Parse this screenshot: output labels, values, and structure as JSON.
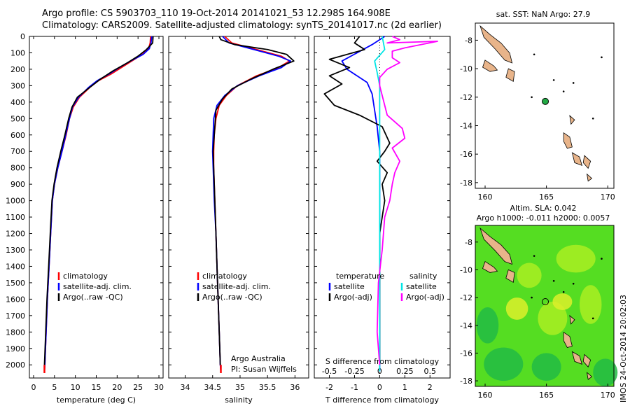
{
  "header": {
    "title_line1": "Argo profile: CS 5903703_110 19-Oct-2014 20141021_53 12.298S 164.908E",
    "title_line2": "Climatology: CARS2009. Satellite-adjusted climatology: synTS_20141017.nc (2d earlier)"
  },
  "colors": {
    "climatology": "#ff0000",
    "satellite": "#0000ff",
    "argo": "#000000",
    "temp_sat_diff": "#0000ff",
    "sal_sat_diff": "#00e5e5",
    "sal_argo_diff": "#ff00ff",
    "land": "#e8b48a"
  },
  "depth_axis": {
    "ticks": [
      0,
      100,
      200,
      300,
      400,
      500,
      600,
      700,
      800,
      900,
      1000,
      1100,
      1200,
      1300,
      1400,
      1500,
      1600,
      1700,
      1800,
      1900,
      2000
    ],
    "range": [
      0,
      2080
    ],
    "reversed": true
  },
  "chart_data": [
    {
      "id": "temperature",
      "type": "line",
      "xlabel": "temperature (deg C)",
      "xlim": [
        -1,
        31
      ],
      "xticks": [
        "0",
        "5",
        "10",
        "15",
        "20",
        "25",
        "30"
      ],
      "xtick_values": [
        0,
        5,
        10,
        15,
        20,
        25,
        30
      ],
      "legend": [
        "climatology",
        "satellite-adj. clim.",
        "Argo(..raw -QC)"
      ],
      "series": [
        {
          "name": "climatology",
          "color": "#ff0000",
          "points": [
            [
              28.0,
              0
            ],
            [
              27.9,
              40
            ],
            [
              27.5,
              75
            ],
            [
              26.0,
              110
            ],
            [
              23.5,
              150
            ],
            [
              21.0,
              190
            ],
            [
              18.5,
              230
            ],
            [
              15.5,
              270
            ],
            [
              13.5,
              310
            ],
            [
              11.0,
              370
            ],
            [
              9.5,
              430
            ],
            [
              8.6,
              500
            ],
            [
              7.8,
              600
            ],
            [
              6.8,
              700
            ],
            [
              5.8,
              800
            ],
            [
              5.0,
              900
            ],
            [
              4.5,
              1000
            ],
            [
              4.1,
              1200
            ],
            [
              3.7,
              1400
            ],
            [
              3.3,
              1600
            ],
            [
              3.0,
              1800
            ],
            [
              2.7,
              2000
            ],
            [
              2.6,
              2040
            ]
          ]
        },
        {
          "name": "satellite-adj. clim.",
          "color": "#0000ff",
          "points": [
            [
              28.3,
              0
            ],
            [
              28.1,
              40
            ],
            [
              27.7,
              75
            ],
            [
              26.2,
              110
            ],
            [
              23.2,
              150
            ],
            [
              20.5,
              190
            ],
            [
              18.0,
              230
            ],
            [
              15.2,
              270
            ],
            [
              13.2,
              310
            ],
            [
              10.8,
              370
            ],
            [
              9.3,
              430
            ],
            [
              8.6,
              500
            ],
            [
              7.7,
              600
            ],
            [
              6.8,
              700
            ],
            [
              5.8,
              800
            ],
            [
              5.0,
              900
            ],
            [
              4.5,
              1000
            ],
            [
              4.1,
              1200
            ],
            [
              3.7,
              1400
            ],
            [
              3.3,
              1600
            ],
            [
              3.0,
              1800
            ],
            [
              2.7,
              2000
            ],
            [
              2.6,
              2040
            ]
          ]
        },
        {
          "name": "Argo(..raw -QC)",
          "color": "#000000",
          "points": [
            [
              28.6,
              0
            ],
            [
              28.5,
              40
            ],
            [
              27.0,
              80
            ],
            [
              25.0,
              120
            ],
            [
              22.5,
              160
            ],
            [
              19.0,
              210
            ],
            [
              16.0,
              260
            ],
            [
              13.5,
              310
            ],
            [
              10.5,
              370
            ],
            [
              9.2,
              430
            ],
            [
              8.4,
              500
            ],
            [
              7.5,
              600
            ],
            [
              6.5,
              700
            ],
            [
              5.6,
              800
            ],
            [
              4.9,
              900
            ],
            [
              4.4,
              1000
            ],
            [
              4.0,
              1200
            ],
            [
              3.6,
              1400
            ],
            [
              3.2,
              1600
            ],
            [
              2.9,
              1800
            ],
            [
              2.6,
              2000
            ]
          ]
        }
      ]
    },
    {
      "id": "salinity",
      "type": "line",
      "xlabel": "salinity",
      "xlim": [
        33.7,
        36.25
      ],
      "xticks": [
        "34",
        "34.5",
        "35",
        "35.5",
        "36"
      ],
      "xtick_values": [
        34,
        34.5,
        35,
        35.5,
        36
      ],
      "legend": [
        "climatology",
        "satellite-adj. clim.",
        "Argo(..raw -QC)"
      ],
      "annotation": [
        "Argo Australia",
        "PI: Susan Wijffels"
      ],
      "series": [
        {
          "name": "climatology",
          "color": "#ff0000",
          "points": [
            [
              34.72,
              0
            ],
            [
              34.85,
              40
            ],
            [
              35.3,
              80
            ],
            [
              35.75,
              120
            ],
            [
              35.9,
              150
            ],
            [
              35.7,
              190
            ],
            [
              35.3,
              240
            ],
            [
              34.95,
              300
            ],
            [
              34.75,
              360
            ],
            [
              34.62,
              420
            ],
            [
              34.56,
              500
            ],
            [
              34.53,
              600
            ],
            [
              34.52,
              700
            ],
            [
              34.52,
              800
            ],
            [
              34.53,
              900
            ],
            [
              34.54,
              1000
            ],
            [
              34.56,
              1200
            ],
            [
              34.58,
              1400
            ],
            [
              34.6,
              1600
            ],
            [
              34.62,
              1800
            ],
            [
              34.64,
              2000
            ],
            [
              34.65,
              2040
            ]
          ]
        },
        {
          "name": "satellite-adj. clim.",
          "color": "#0000ff",
          "points": [
            [
              34.68,
              0
            ],
            [
              34.8,
              40
            ],
            [
              35.25,
              80
            ],
            [
              35.7,
              120
            ],
            [
              35.92,
              150
            ],
            [
              35.75,
              190
            ],
            [
              35.35,
              240
            ],
            [
              34.95,
              300
            ],
            [
              34.72,
              360
            ],
            [
              34.58,
              420
            ],
            [
              34.52,
              500
            ],
            [
              34.51,
              600
            ],
            [
              34.5,
              700
            ],
            [
              34.51,
              800
            ],
            [
              34.52,
              900
            ],
            [
              34.53,
              1000
            ],
            [
              34.56,
              1200
            ],
            [
              34.58,
              1400
            ],
            [
              34.6,
              1600
            ],
            [
              34.62,
              1800
            ],
            [
              34.64,
              2000
            ],
            [
              34.65,
              2040
            ]
          ]
        },
        {
          "name": "Argo(..raw -QC)",
          "color": "#000000",
          "points": [
            [
              34.62,
              0
            ],
            [
              34.65,
              20
            ],
            [
              34.9,
              50
            ],
            [
              35.5,
              80
            ],
            [
              35.85,
              110
            ],
            [
              35.98,
              150
            ],
            [
              35.6,
              200
            ],
            [
              35.2,
              260
            ],
            [
              34.85,
              320
            ],
            [
              34.68,
              380
            ],
            [
              34.56,
              450
            ],
            [
              34.55,
              500
            ],
            [
              34.53,
              600
            ],
            [
              34.51,
              700
            ],
            [
              34.52,
              800
            ],
            [
              34.53,
              900
            ],
            [
              34.54,
              1000
            ],
            [
              34.56,
              1200
            ],
            [
              34.58,
              1400
            ],
            [
              34.6,
              1600
            ],
            [
              34.62,
              1800
            ],
            [
              34.64,
              2000
            ]
          ]
        }
      ]
    },
    {
      "id": "difference",
      "type": "line",
      "xlabel": "T difference from climatology",
      "xlabel_top": "S difference from climatology",
      "xlim": [
        -2.6,
        2.8
      ],
      "xticks": [
        "-2",
        "-1",
        "0",
        "1",
        "2"
      ],
      "xtick_values": [
        -2,
        -1,
        0,
        1,
        2
      ],
      "xticks_top": [
        "-0.5",
        "-0.25",
        "0",
        "0.25",
        "0.5"
      ],
      "xtick_values_top": [
        -0.5,
        -0.25,
        0,
        0.25,
        0.5
      ],
      "legend_temperature_title": "temperature",
      "legend_salinity_title": "salinity",
      "legend": [
        "satellite",
        "Argo(-adj)"
      ],
      "series": [
        {
          "name": "satellite (temperature)",
          "color": "#0000ff",
          "points": [
            [
              0.2,
              0
            ],
            [
              -0.3,
              50
            ],
            [
              -1.5,
              150
            ],
            [
              -1.3,
              200
            ],
            [
              -0.5,
              280
            ],
            [
              -0.3,
              350
            ],
            [
              -0.2,
              450
            ],
            [
              -0.1,
              550
            ],
            [
              0,
              700
            ],
            [
              0,
              1000
            ],
            [
              0,
              1500
            ],
            [
              0,
              2040
            ]
          ]
        },
        {
          "name": "Argo(-adj) (temperature)",
          "color": "#000000",
          "points": [
            [
              -0.8,
              0
            ],
            [
              -1.0,
              40
            ],
            [
              -0.6,
              80
            ],
            [
              -2.0,
              140
            ],
            [
              -1.2,
              190
            ],
            [
              -2.0,
              240
            ],
            [
              -1.5,
              290
            ],
            [
              -2.2,
              350
            ],
            [
              -1.8,
              420
            ],
            [
              -0.8,
              480
            ],
            [
              0.1,
              550
            ],
            [
              0.4,
              650
            ],
            [
              0.2,
              700
            ],
            [
              -0.1,
              760
            ],
            [
              0.3,
              830
            ],
            [
              0.1,
              900
            ],
            [
              0.2,
              1000
            ],
            [
              0,
              1200
            ],
            [
              0,
              1500
            ],
            [
              0,
              2000
            ]
          ]
        },
        {
          "name": "satellite (salinity)",
          "color": "#00e5e5",
          "points": [
            [
              0.1,
              0
            ],
            [
              0.2,
              80
            ],
            [
              -0.2,
              150
            ],
            [
              -0.1,
              220
            ],
            [
              0,
              300
            ],
            [
              0,
              400
            ],
            [
              0,
              500
            ],
            [
              0,
              700
            ],
            [
              0,
              1000
            ],
            [
              0,
              1500
            ],
            [
              0,
              2040
            ]
          ]
        },
        {
          "name": "Argo(-adj) (salinity)",
          "color": "#ff00ff",
          "points": [
            [
              0.5,
              0
            ],
            [
              0.8,
              20
            ],
            [
              0.3,
              40
            ],
            [
              2.3,
              30
            ],
            [
              1.0,
              70
            ],
            [
              0.5,
              90
            ],
            [
              0.5,
              130
            ],
            [
              0.8,
              160
            ],
            [
              0.3,
              200
            ],
            [
              0,
              250
            ],
            [
              0,
              300
            ],
            [
              0.3,
              480
            ],
            [
              0.9,
              560
            ],
            [
              1.0,
              620
            ],
            [
              0.5,
              680
            ],
            [
              0.8,
              760
            ],
            [
              0.6,
              830
            ],
            [
              0.5,
              900
            ],
            [
              0.4,
              1000
            ],
            [
              0.2,
              1100
            ],
            [
              0.1,
              1300
            ],
            [
              -0.05,
              1500
            ],
            [
              -0.1,
              1800
            ],
            [
              0,
              2000
            ]
          ]
        }
      ]
    }
  ],
  "map_sst": {
    "title": "sat. SST: NaN Argo: 27.9",
    "xticks": [
      "160",
      "165",
      "170"
    ],
    "xtick_values": [
      160,
      165,
      170
    ],
    "yticks": [
      "-8",
      "-10",
      "-12",
      "-14",
      "-16",
      "-18"
    ],
    "ytick_values": [
      -8,
      -10,
      -12,
      -14,
      -16,
      -18
    ],
    "lon_range": [
      159.2,
      170.5
    ],
    "lat_range": [
      -18.4,
      -6.8
    ],
    "argo_position": [
      164.908,
      -12.298
    ],
    "marker_color": "#22aa44"
  },
  "map_sla": {
    "title_line1": "Altim. SLA: 0.042",
    "title_line2": "Argo h1000: -0.011 h2000: 0.0057",
    "side_label": "IMOS 24-Oct-2014 20:02:03",
    "xticks": [
      "160",
      "165",
      "170"
    ],
    "xtick_values": [
      160,
      165,
      170
    ],
    "yticks": [
      "-8",
      "-10",
      "-12",
      "-14",
      "-16",
      "-18"
    ],
    "ytick_values": [
      -8,
      -10,
      -12,
      -14,
      -16,
      -18
    ],
    "lon_range": [
      159.2,
      170.5
    ],
    "lat_range": [
      -18.4,
      -6.8
    ],
    "argo_position": [
      164.908,
      -12.298
    ],
    "field_colors": [
      "#55dd22",
      "#22bb44",
      "#aaee22",
      "#ddf02a"
    ]
  }
}
